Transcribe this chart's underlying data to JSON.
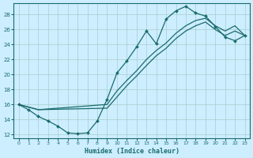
{
  "xlabel": "Humidex (Indice chaleur)",
  "bg_color": "#cceeff",
  "grid_color": "#aacccc",
  "line_color": "#1a6b6b",
  "xlim": [
    -0.5,
    23.5
  ],
  "ylim": [
    11.5,
    29.5
  ],
  "xticks": [
    0,
    1,
    2,
    3,
    4,
    5,
    6,
    7,
    8,
    9,
    10,
    11,
    12,
    13,
    14,
    15,
    16,
    17,
    18,
    19,
    20,
    21,
    22,
    23
  ],
  "yticks": [
    12,
    14,
    16,
    18,
    20,
    22,
    24,
    26,
    28
  ],
  "lines": [
    {
      "x": [
        0,
        1,
        2,
        3,
        4,
        5,
        6,
        7,
        8,
        9,
        10,
        11,
        12,
        13,
        14,
        15,
        16,
        17,
        18,
        19,
        20,
        21,
        22,
        23
      ],
      "y": [
        16.0,
        15.3,
        14.4,
        13.8,
        13.1,
        12.2,
        12.1,
        12.2,
        13.8,
        16.7,
        20.2,
        21.8,
        23.7,
        25.8,
        24.1,
        27.4,
        28.5,
        29.1,
        28.2,
        27.8,
        26.4,
        25.0,
        24.5,
        25.2
      ],
      "markers": true
    },
    {
      "x": [
        0,
        2,
        9,
        10,
        11,
        12,
        13,
        14,
        15,
        16,
        17,
        18,
        19,
        20,
        21,
        22,
        23
      ],
      "y": [
        16.0,
        15.3,
        16.0,
        17.8,
        19.2,
        20.5,
        22.0,
        23.2,
        24.2,
        25.5,
        26.5,
        27.2,
        27.5,
        26.5,
        25.8,
        26.5,
        25.2
      ],
      "markers": false
    },
    {
      "x": [
        0,
        2,
        9,
        10,
        11,
        12,
        13,
        14,
        15,
        16,
        17,
        18,
        19,
        20,
        21,
        22,
        23
      ],
      "y": [
        16.0,
        15.3,
        15.5,
        17.0,
        18.5,
        19.8,
        21.2,
        22.5,
        23.5,
        24.8,
        25.8,
        26.5,
        27.0,
        26.0,
        25.2,
        25.8,
        25.2
      ],
      "markers": false
    }
  ]
}
